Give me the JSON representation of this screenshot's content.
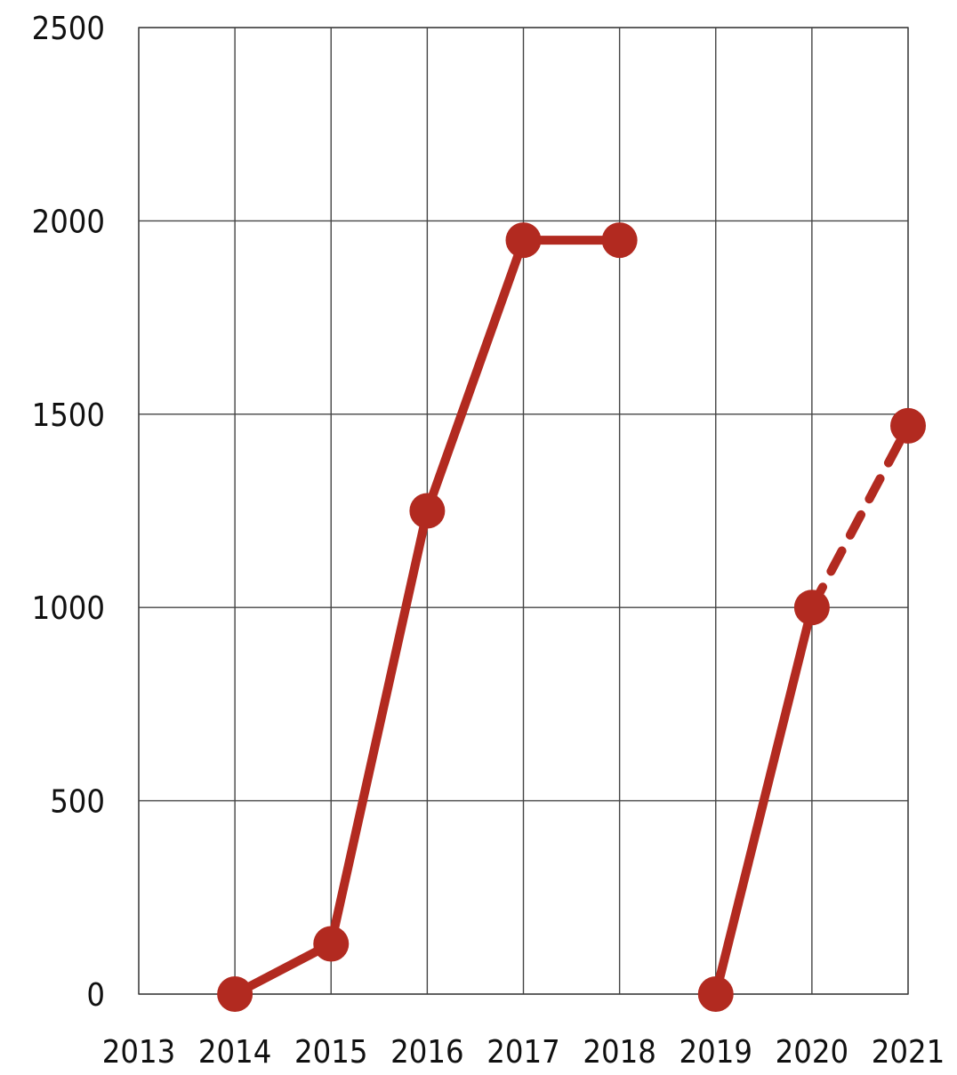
{
  "chart_data": {
    "type": "line",
    "title": "",
    "xlabel": "",
    "ylabel": "",
    "x_ticks": [
      "2013",
      "2014",
      "2015",
      "2016",
      "2017",
      "2018",
      "2019",
      "2020",
      "2021"
    ],
    "y_ticks": [
      "0",
      "500",
      "1000",
      "1500",
      "2000",
      "2500"
    ],
    "xlim": [
      2013,
      2021
    ],
    "ylim": [
      0,
      2500
    ],
    "grid": true,
    "series_color": "#b22a20",
    "segments": [
      {
        "style": "solid",
        "points": [
          [
            2014,
            0
          ],
          [
            2015,
            130
          ],
          [
            2016,
            1250
          ],
          [
            2017,
            1950
          ],
          [
            2018,
            1950
          ]
        ]
      },
      {
        "style": "solid",
        "points": [
          [
            2019,
            0
          ],
          [
            2020,
            1000
          ]
        ]
      },
      {
        "style": "dashed",
        "points": [
          [
            2020,
            1000
          ],
          [
            2021,
            1470
          ]
        ]
      }
    ]
  }
}
